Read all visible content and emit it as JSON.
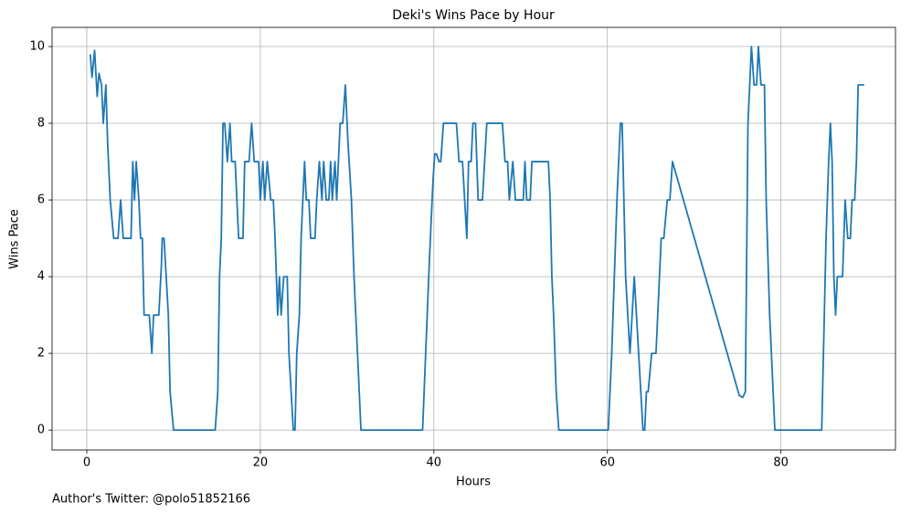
{
  "chart_data": {
    "type": "line",
    "title": "Deki's Wins Pace by Hour",
    "xlabel": "Hours",
    "ylabel": "Wins Pace",
    "footnote": "Author's Twitter: @polo51852166",
    "x": [
      0.4,
      0.6,
      0.9,
      1.2,
      1.4,
      1.7,
      1.9,
      2.2,
      2.4,
      2.7,
      3.1,
      3.6,
      3.9,
      4.2,
      5.1,
      5.3,
      5.5,
      5.7,
      6.0,
      6.2,
      6.4,
      6.6,
      7.2,
      7.5,
      7.7,
      8.3,
      8.6,
      8.7,
      8.9,
      9.4,
      9.6,
      10.0,
      14.8,
      15.1,
      15.3,
      15.5,
      15.7,
      15.9,
      16.2,
      16.5,
      16.7,
      17.1,
      17.5,
      18.0,
      18.2,
      18.7,
      19.0,
      19.3,
      19.8,
      20.0,
      20.3,
      20.5,
      20.8,
      21.2,
      21.5,
      21.7,
      22.0,
      22.2,
      22.4,
      22.7,
      23.1,
      23.3,
      23.8,
      24.0,
      24.2,
      24.5,
      24.7,
      25.1,
      25.3,
      25.6,
      25.8,
      26.3,
      26.5,
      26.8,
      27.1,
      27.3,
      27.6,
      27.9,
      28.1,
      28.3,
      28.6,
      28.8,
      29.2,
      29.5,
      29.8,
      30.1,
      30.5,
      30.8,
      31.2,
      31.6,
      38.7,
      39.5,
      39.9,
      40.1,
      40.3,
      40.6,
      40.8,
      41.1,
      42.6,
      42.9,
      43.3,
      43.8,
      44.0,
      44.3,
      44.5,
      44.8,
      45.1,
      45.6,
      46.1,
      47.9,
      48.2,
      48.5,
      48.7,
      49.1,
      49.4,
      50.3,
      50.5,
      50.7,
      51.1,
      51.3,
      53.2,
      53.4,
      53.6,
      53.8,
      54.1,
      54.4,
      60.1,
      60.5,
      61.1,
      61.5,
      61.7,
      62.1,
      62.6,
      63.1,
      63.6,
      64.1,
      64.3,
      64.5,
      64.7,
      65.1,
      65.6,
      66.2,
      66.5,
      66.9,
      67.2,
      67.5,
      75.2,
      75.6,
      75.9,
      76.2,
      76.6,
      76.9,
      77.2,
      77.4,
      77.7,
      78.1,
      78.3,
      78.7,
      79.3,
      84.7,
      85.2,
      85.5,
      85.7,
      85.9,
      86.1,
      86.3,
      86.5,
      87.1,
      87.4,
      87.7,
      88.0,
      88.2,
      88.5,
      88.7,
      88.9,
      89.6
    ],
    "series": [
      {
        "name": "Wins Pace",
        "color": "#1f77b4",
        "values": [
          9.8,
          9.2,
          9.9,
          8.7,
          9.3,
          9.0,
          8.0,
          9.0,
          7.5,
          6,
          5,
          5,
          6,
          5,
          5,
          7,
          6,
          7,
          6,
          5,
          5,
          3,
          3,
          2,
          3,
          3,
          4.3,
          5,
          5,
          3,
          1,
          0,
          0,
          1,
          4,
          5,
          8,
          8,
          7,
          8,
          7,
          7,
          5,
          5,
          7,
          7,
          8,
          7,
          7,
          6,
          7,
          6,
          7,
          6,
          6,
          5,
          3,
          4,
          3,
          4,
          4,
          2,
          0,
          0,
          2,
          3,
          5,
          7,
          6,
          6,
          5,
          5,
          6,
          7,
          6,
          7,
          6,
          6,
          7,
          6,
          7,
          6,
          8,
          8,
          9,
          7.5,
          6,
          4,
          2,
          0,
          0,
          4.5,
          6.5,
          7.2,
          7.2,
          7,
          7,
          8,
          8,
          7,
          7,
          5,
          7,
          7,
          8,
          8,
          6,
          6,
          8,
          8,
          7,
          7,
          6,
          7,
          6,
          6,
          7,
          6,
          6,
          7,
          7,
          6,
          4,
          3,
          1,
          0,
          0,
          2,
          6,
          8,
          8,
          4,
          2,
          4,
          2,
          0,
          0,
          1,
          1,
          2,
          2,
          5,
          5,
          6,
          6,
          7,
          0.9,
          0.85,
          1,
          8,
          10,
          9,
          9,
          10,
          9,
          9,
          6,
          3,
          0,
          0,
          5,
          7,
          8,
          7,
          4,
          3,
          4,
          4,
          6,
          5,
          5,
          6,
          6,
          7,
          9,
          9
        ]
      }
    ],
    "xlim": [
      -4.0,
      93.2
    ],
    "ylim": [
      -0.52,
      10.5
    ],
    "xticks": [
      0,
      20,
      40,
      60,
      80
    ],
    "yticks": [
      0,
      2,
      4,
      6,
      8,
      10
    ],
    "grid": true
  }
}
